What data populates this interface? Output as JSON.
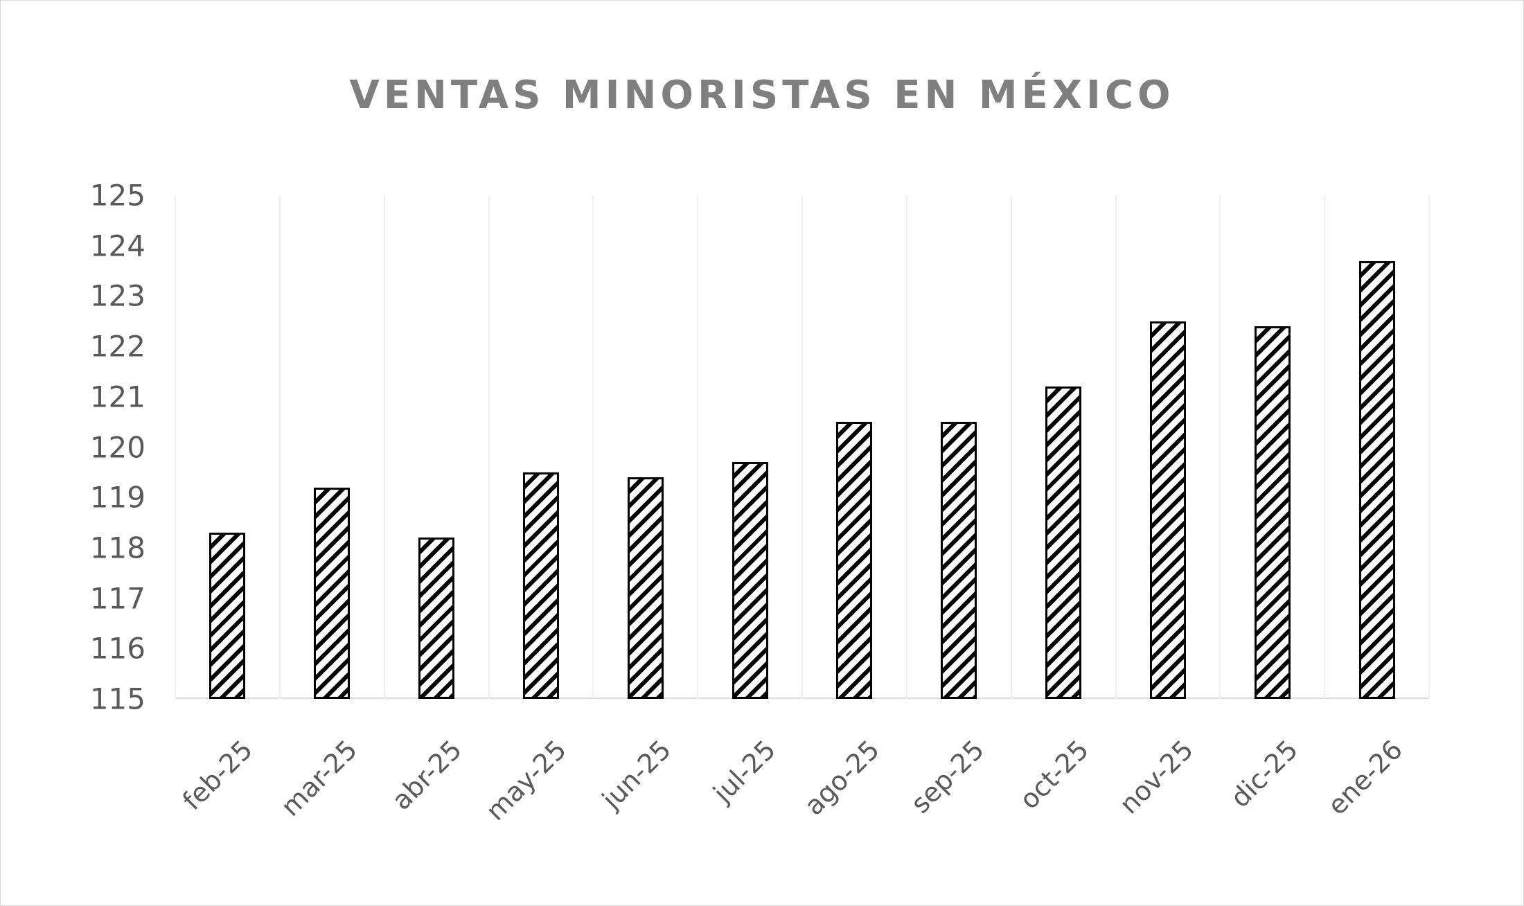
{
  "chart_data": {
    "type": "bar",
    "title": "VENTAS MINORISTAS EN MÉXICO",
    "xlabel": "",
    "ylabel": "",
    "ylim": [
      115,
      125
    ],
    "yticks": [
      115,
      116,
      117,
      118,
      119,
      120,
      121,
      122,
      123,
      124,
      125
    ],
    "categories": [
      "feb-25",
      "mar-25",
      "abr-25",
      "may-25",
      "jun-25",
      "jul-25",
      "ago-25",
      "sep-25",
      "oct-25",
      "nov-25",
      "dic-25",
      "ene-26"
    ],
    "values": [
      118.3,
      119.2,
      118.2,
      119.5,
      119.4,
      119.7,
      120.5,
      120.5,
      121.2,
      122.5,
      122.4,
      123.7
    ],
    "grid": {
      "vertical": true,
      "horizontal": false
    },
    "legend": null,
    "bar_style": {
      "fill": "diagonal-hatch",
      "stroke": "#000000",
      "hatch_color": "#000000"
    },
    "colors": {
      "title": "#7f7f7f",
      "tick_labels": "#595959",
      "gridlines": "#f0f0f0"
    }
  }
}
